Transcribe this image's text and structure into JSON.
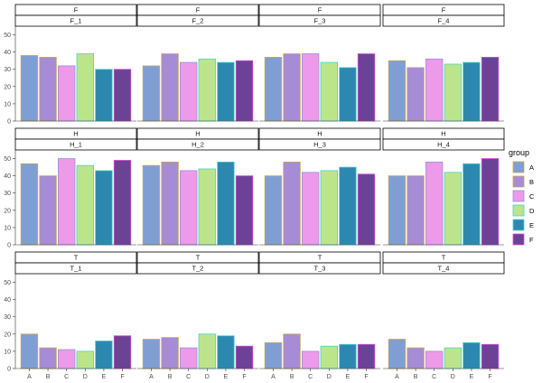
{
  "chart_data": {
    "type": "bar",
    "categories": [
      "A",
      "B",
      "C",
      "D",
      "E",
      "F"
    ],
    "ylim": [
      0,
      55
    ],
    "yticks": [
      0,
      10,
      20,
      30,
      40,
      50
    ],
    "grid": false,
    "legend": {
      "title": "group",
      "position": "right",
      "entries": [
        "A",
        "B",
        "C",
        "D",
        "E",
        "F"
      ]
    },
    "colors": {
      "fill": [
        "#7f9fd4",
        "#a68bd6",
        "#ec9ae9",
        "#bce58b",
        "#2d88b0",
        "#6b4296"
      ],
      "outline": [
        "#c9a85c",
        "#c9a85c",
        "#9a8fe0",
        "#4fd1c5",
        "#4fd1c5",
        "#d84fd8"
      ]
    },
    "rows": [
      {
        "label": "F",
        "panels": [
          {
            "strip_top": "F",
            "strip_bottom": "F_1",
            "values": [
              38,
              37,
              32,
              39,
              30,
              30
            ]
          },
          {
            "strip_top": "F",
            "strip_bottom": "F_2",
            "values": [
              32,
              39,
              34,
              36,
              34,
              35
            ]
          },
          {
            "strip_top": "F",
            "strip_bottom": "F_3",
            "values": [
              37,
              39,
              39,
              34,
              31,
              39
            ]
          },
          {
            "strip_top": "F",
            "strip_bottom": "F_4",
            "values": [
              35,
              31,
              36,
              33,
              34,
              37
            ]
          }
        ]
      },
      {
        "label": "H",
        "panels": [
          {
            "strip_top": "H",
            "strip_bottom": "H_1",
            "values": [
              47,
              40,
              50,
              46,
              43,
              49
            ]
          },
          {
            "strip_top": "H",
            "strip_bottom": "H_2",
            "values": [
              46,
              48,
              43,
              44,
              48,
              40
            ]
          },
          {
            "strip_top": "H",
            "strip_bottom": "H_3",
            "values": [
              40,
              48,
              42,
              43,
              45,
              41
            ]
          },
          {
            "strip_top": "H",
            "strip_bottom": "H_4",
            "values": [
              40,
              40,
              48,
              42,
              47,
              50
            ]
          }
        ]
      },
      {
        "label": "T",
        "panels": [
          {
            "strip_top": "T",
            "strip_bottom": "T_1",
            "values": [
              20,
              12,
              11,
              10,
              16,
              19
            ]
          },
          {
            "strip_top": "T",
            "strip_bottom": "T_2",
            "values": [
              17,
              18,
              12,
              20,
              19,
              13
            ]
          },
          {
            "strip_top": "T",
            "strip_bottom": "T_3",
            "values": [
              15,
              20,
              10,
              13,
              14,
              14
            ]
          },
          {
            "strip_top": "T",
            "strip_bottom": "T_4",
            "values": [
              17,
              12,
              10,
              12,
              15,
              14
            ]
          }
        ]
      }
    ]
  }
}
